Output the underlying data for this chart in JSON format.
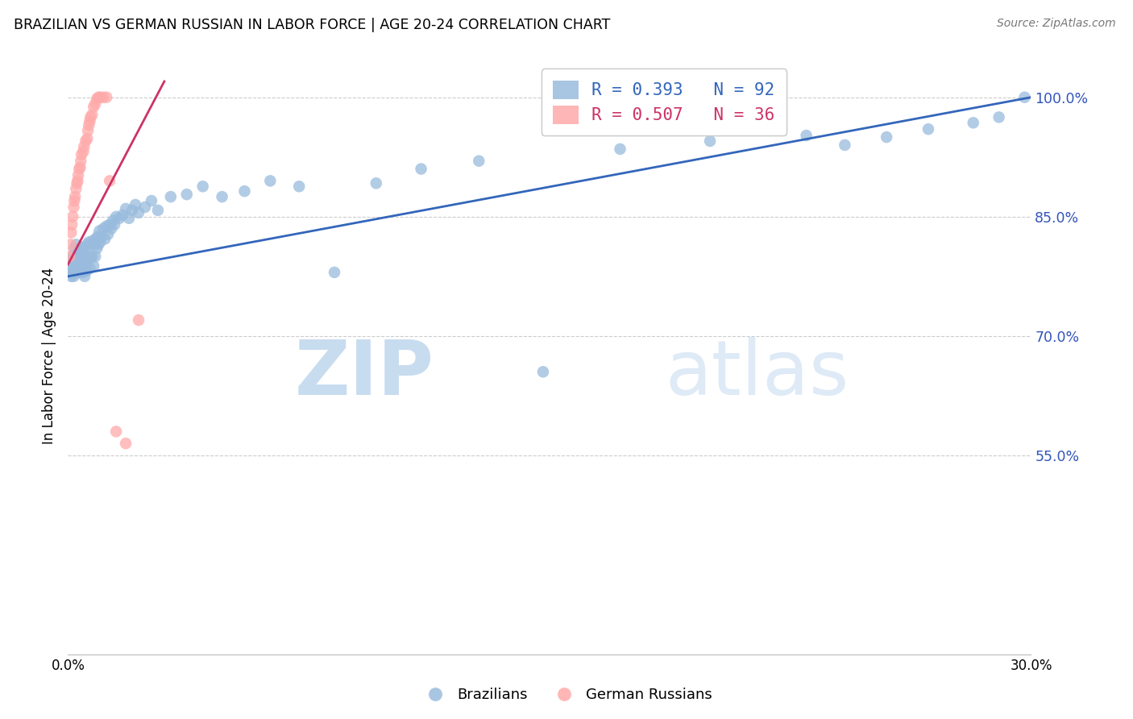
{
  "title": "BRAZILIAN VS GERMAN RUSSIAN IN LABOR FORCE | AGE 20-24 CORRELATION CHART",
  "source": "Source: ZipAtlas.com",
  "ylabel": "In Labor Force | Age 20-24",
  "xlim": [
    0.0,
    0.3
  ],
  "ylim": [
    0.3,
    1.05
  ],
  "ytick_vals": [
    0.55,
    0.7,
    0.85,
    1.0
  ],
  "ytick_labels": [
    "55.0%",
    "70.0%",
    "85.0%",
    "100.0%"
  ],
  "blue_color": "#99BBDD",
  "pink_color": "#FFAAAA",
  "blue_line_color": "#3366BB",
  "pink_line_color": "#CC3366",
  "legend_blue_label": "R = 0.393   N = 92",
  "legend_pink_label": "R = 0.507   N = 36",
  "watermark_zip": "ZIP",
  "watermark_atlas": "atlas",
  "brazilians_label": "Brazilians",
  "german_russians_label": "German Russians",
  "blue_scatter_x": [
    0.0005,
    0.0008,
    0.001,
    0.001,
    0.0012,
    0.0015,
    0.0015,
    0.0018,
    0.002,
    0.002,
    0.0022,
    0.0025,
    0.0025,
    0.0028,
    0.0028,
    0.003,
    0.003,
    0.0032,
    0.0035,
    0.0035,
    0.0038,
    0.004,
    0.004,
    0.0042,
    0.0045,
    0.0045,
    0.0048,
    0.005,
    0.005,
    0.0052,
    0.0055,
    0.0055,
    0.0058,
    0.006,
    0.006,
    0.0062,
    0.0065,
    0.0068,
    0.007,
    0.0072,
    0.0075,
    0.0078,
    0.008,
    0.0082,
    0.0085,
    0.0088,
    0.009,
    0.0092,
    0.0095,
    0.0098,
    0.01,
    0.0105,
    0.011,
    0.0115,
    0.012,
    0.0125,
    0.013,
    0.0135,
    0.014,
    0.0145,
    0.015,
    0.016,
    0.017,
    0.018,
    0.019,
    0.02,
    0.021,
    0.022,
    0.024,
    0.026,
    0.028,
    0.032,
    0.037,
    0.042,
    0.048,
    0.055,
    0.063,
    0.072,
    0.083,
    0.096,
    0.11,
    0.128,
    0.148,
    0.172,
    0.2,
    0.23,
    0.242,
    0.255,
    0.268,
    0.282,
    0.29,
    0.298
  ],
  "blue_scatter_y": [
    0.79,
    0.78,
    0.775,
    0.795,
    0.785,
    0.78,
    0.8,
    0.775,
    0.795,
    0.81,
    0.78,
    0.795,
    0.815,
    0.785,
    0.8,
    0.78,
    0.798,
    0.792,
    0.788,
    0.805,
    0.792,
    0.78,
    0.798,
    0.81,
    0.792,
    0.808,
    0.78,
    0.795,
    0.812,
    0.775,
    0.79,
    0.808,
    0.782,
    0.795,
    0.815,
    0.8,
    0.818,
    0.785,
    0.798,
    0.815,
    0.8,
    0.82,
    0.788,
    0.815,
    0.8,
    0.822,
    0.81,
    0.825,
    0.815,
    0.832,
    0.818,
    0.825,
    0.835,
    0.822,
    0.838,
    0.828,
    0.84,
    0.835,
    0.845,
    0.84,
    0.85,
    0.848,
    0.852,
    0.86,
    0.848,
    0.858,
    0.865,
    0.855,
    0.862,
    0.87,
    0.858,
    0.875,
    0.878,
    0.888,
    0.875,
    0.882,
    0.895,
    0.888,
    0.78,
    0.892,
    0.91,
    0.92,
    0.655,
    0.935,
    0.945,
    0.952,
    0.94,
    0.95,
    0.96,
    0.968,
    0.975,
    1.0
  ],
  "pink_scatter_x": [
    0.0005,
    0.0008,
    0.001,
    0.0012,
    0.0015,
    0.0018,
    0.002,
    0.0022,
    0.0025,
    0.0028,
    0.003,
    0.0032,
    0.0035,
    0.0038,
    0.004,
    0.0042,
    0.0048,
    0.005,
    0.0055,
    0.006,
    0.0062,
    0.0065,
    0.0068,
    0.007,
    0.0075,
    0.008,
    0.0085,
    0.009,
    0.0095,
    0.01,
    0.011,
    0.012,
    0.013,
    0.015,
    0.018,
    0.022
  ],
  "pink_scatter_y": [
    0.8,
    0.815,
    0.83,
    0.84,
    0.85,
    0.862,
    0.87,
    0.875,
    0.885,
    0.892,
    0.895,
    0.902,
    0.91,
    0.912,
    0.92,
    0.928,
    0.932,
    0.938,
    0.945,
    0.948,
    0.958,
    0.965,
    0.97,
    0.975,
    0.978,
    0.988,
    0.992,
    0.998,
    1.0,
    1.0,
    1.0,
    1.0,
    0.895,
    0.58,
    0.565,
    0.72
  ],
  "blue_line_x": [
    0.0,
    0.3
  ],
  "blue_line_y": [
    0.775,
    1.0
  ],
  "pink_line_x": [
    0.0,
    0.03
  ],
  "pink_line_y": [
    0.79,
    1.02
  ]
}
